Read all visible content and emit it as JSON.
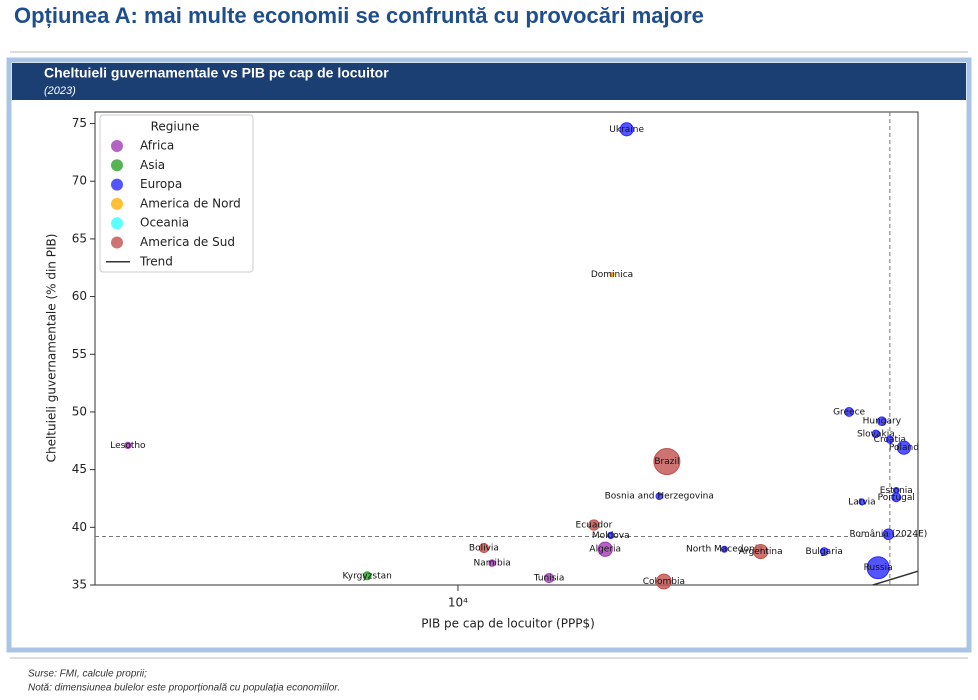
{
  "page_title": "Opțiunea A: mai multe economii se confruntă cu provocări majore",
  "chart_data": {
    "type": "scatter",
    "title": "Cheltuieli guvernamentale vs PIB pe cap de locuitor",
    "subtitle": "(2023)",
    "x_label": "PIB pe cap de locuitor (PPP$)",
    "y_label": "Cheltuieli guvernamentale (% din PIB)",
    "x_log": true,
    "xlim": [
      3000,
      46000
    ],
    "xticks": [
      {
        "value": 10000,
        "label": "10⁴"
      }
    ],
    "ylim": [
      35,
      76
    ],
    "yticks": [
      35,
      40,
      45,
      50,
      55,
      60,
      65,
      70,
      75
    ],
    "legend_title": "Regiune",
    "legend_position": "upper left",
    "series": [
      {
        "name": "Africa",
        "color": "#a23cb4",
        "labels": [
          "Lesotho",
          "Algeria",
          "Namibia",
          "Tunisia"
        ],
        "x": [
          3346,
          16300,
          11200,
          13530
        ],
        "values": [
          47.1,
          38.1,
          36.9,
          35.6
        ],
        "sizes": [
          2.3,
          46,
          2.6,
          12
        ]
      },
      {
        "name": "Asia",
        "color": "#2ca02c",
        "labels": [
          "Kyrgyzstan"
        ],
        "x": [
          7400
        ],
        "values": [
          35.8
        ],
        "sizes": [
          7
        ]
      },
      {
        "name": "Europa",
        "color": "#2b2bff",
        "labels": [
          "Ukraine",
          "Greece",
          "Hungary",
          "Slovakia",
          "Croatia",
          "Poland",
          "Estonia",
          "Portugal",
          "Latvia",
          "Bosnia and Herzegovina",
          "Moldova",
          "România (2024E)",
          "North Macedonia",
          "Bulgaria",
          "Russia"
        ],
        "x": [
          17500,
          36600,
          40800,
          40000,
          41900,
          43900,
          42800,
          42800,
          38200,
          19500,
          16600,
          41700,
          24200,
          33700,
          40300
        ],
        "values": [
          74.5,
          50.0,
          49.2,
          48.1,
          47.6,
          46.9,
          43.2,
          42.6,
          42.2,
          42.7,
          39.3,
          39.4,
          38.1,
          37.9,
          36.5
        ],
        "sizes": [
          37,
          10.4,
          9.6,
          5.4,
          3.9,
          37,
          1.4,
          10.5,
          1.9,
          3.2,
          2.5,
          19,
          1.8,
          6.4,
          144
        ]
      },
      {
        "name": "America de Nord",
        "color": "#ffb000",
        "labels": [
          "Dominica"
        ],
        "x": [
          16670
        ],
        "values": [
          61.9
        ],
        "sizes": [
          0.07
        ]
      },
      {
        "name": "Oceania",
        "color": "#33ffff",
        "labels": [],
        "x": [],
        "values": [],
        "sizes": []
      },
      {
        "name": "America de Sud",
        "color": "#c0504d",
        "labels": [
          "Brazil",
          "Ecuador",
          "Bolivia",
          "Argentina",
          "Colombia"
        ],
        "x": [
          20000,
          15700,
          10900,
          27300,
          19800
        ],
        "values": [
          45.7,
          40.2,
          38.2,
          37.9,
          35.3
        ],
        "sizes": [
          216,
          18,
          12,
          46,
          52
        ]
      }
    ],
    "trend": {
      "name": "Trend",
      "color": "#333333",
      "x": [
        39600,
        46000
      ],
      "y": [
        35,
        36.2
      ]
    },
    "ref_lines": {
      "x": 41900,
      "y": 39.2
    }
  },
  "footnotes": [
    "Surse: FMI, calcule proprii;",
    "Notă: dimensiunea bulelor este proporțională cu populația economiilor."
  ]
}
